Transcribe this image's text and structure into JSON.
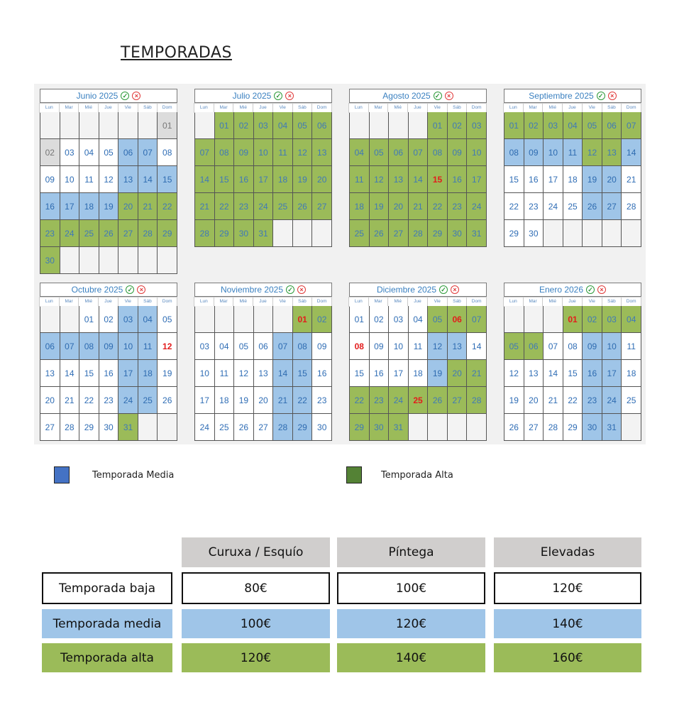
{
  "title": "TEMPORADAS",
  "weekdays": [
    "Lun",
    "Mar",
    "Mié",
    "Jue",
    "Vie",
    "Sáb",
    "Dom"
  ],
  "colors": {
    "alta": "#9bbb59",
    "media": "#9fc5e8",
    "red": "#e31c1c"
  },
  "months": [
    {
      "name": "Junio 2025",
      "offset": 6,
      "days": 30,
      "alta": [
        20,
        21,
        22,
        23,
        24,
        25,
        26,
        27,
        28,
        29,
        30
      ],
      "media": [
        6,
        7,
        13,
        14,
        15,
        16,
        17,
        18,
        19
      ],
      "gray": [
        1,
        2
      ],
      "red": []
    },
    {
      "name": "Julio 2025",
      "offset": 1,
      "days": 31,
      "alta": [
        1,
        2,
        3,
        4,
        5,
        6,
        7,
        8,
        9,
        10,
        11,
        12,
        13,
        14,
        15,
        16,
        17,
        18,
        19,
        20,
        21,
        22,
        23,
        24,
        25,
        26,
        27,
        28,
        29,
        30,
        31
      ],
      "media": [],
      "gray": [],
      "red": []
    },
    {
      "name": "Agosto 2025",
      "offset": 4,
      "days": 31,
      "alta": [
        1,
        2,
        3,
        4,
        5,
        6,
        7,
        8,
        9,
        10,
        11,
        12,
        13,
        14,
        15,
        16,
        17,
        18,
        19,
        20,
        21,
        22,
        23,
        24,
        25,
        26,
        27,
        28,
        29,
        30,
        31
      ],
      "media": [],
      "gray": [],
      "red": [
        15
      ]
    },
    {
      "name": "Septiembre 2025",
      "offset": 0,
      "days": 30,
      "alta": [
        1,
        2,
        3,
        4,
        5,
        6,
        7,
        12,
        13
      ],
      "media": [
        8,
        9,
        10,
        11,
        14,
        19,
        20,
        26,
        27
      ],
      "gray": [],
      "red": []
    },
    {
      "name": "Octubre 2025",
      "offset": 2,
      "days": 31,
      "alta": [
        31
      ],
      "media": [
        3,
        4,
        6,
        7,
        8,
        9,
        10,
        11,
        17,
        18,
        24,
        25
      ],
      "gray": [],
      "red": [
        12
      ]
    },
    {
      "name": "Noviembre 2025",
      "offset": 5,
      "days": 30,
      "alta": [
        1,
        2
      ],
      "media": [
        7,
        8,
        14,
        15,
        21,
        22,
        28,
        29
      ],
      "gray": [],
      "red": [
        1
      ]
    },
    {
      "name": "Diciembre 2025",
      "offset": 0,
      "days": 31,
      "alta": [
        5,
        6,
        7,
        20,
        21,
        22,
        23,
        24,
        25,
        26,
        27,
        28,
        29,
        30,
        31
      ],
      "media": [
        12,
        13,
        19
      ],
      "gray": [],
      "red": [
        6,
        8,
        25
      ]
    },
    {
      "name": "Enero 2026",
      "offset": 3,
      "days": 31,
      "alta": [
        1,
        2,
        3,
        4,
        5,
        6
      ],
      "media": [
        9,
        10,
        16,
        17,
        23,
        24,
        30,
        31
      ],
      "gray": [],
      "red": [
        1
      ]
    }
  ],
  "legend": {
    "media": "Temporada Media",
    "alta": "Temporada Alta"
  },
  "prices": {
    "headers": [
      "Curuxa / Esquío",
      "Píntega",
      "Elevadas"
    ],
    "rows": [
      {
        "label": "Temporada baja",
        "values": [
          "80€",
          "100€",
          "120€"
        ]
      },
      {
        "label": "Temporada media",
        "values": [
          "100€",
          "120€",
          "140€"
        ]
      },
      {
        "label": "Temporada alta",
        "values": [
          "120€",
          "140€",
          "160€"
        ]
      }
    ]
  }
}
